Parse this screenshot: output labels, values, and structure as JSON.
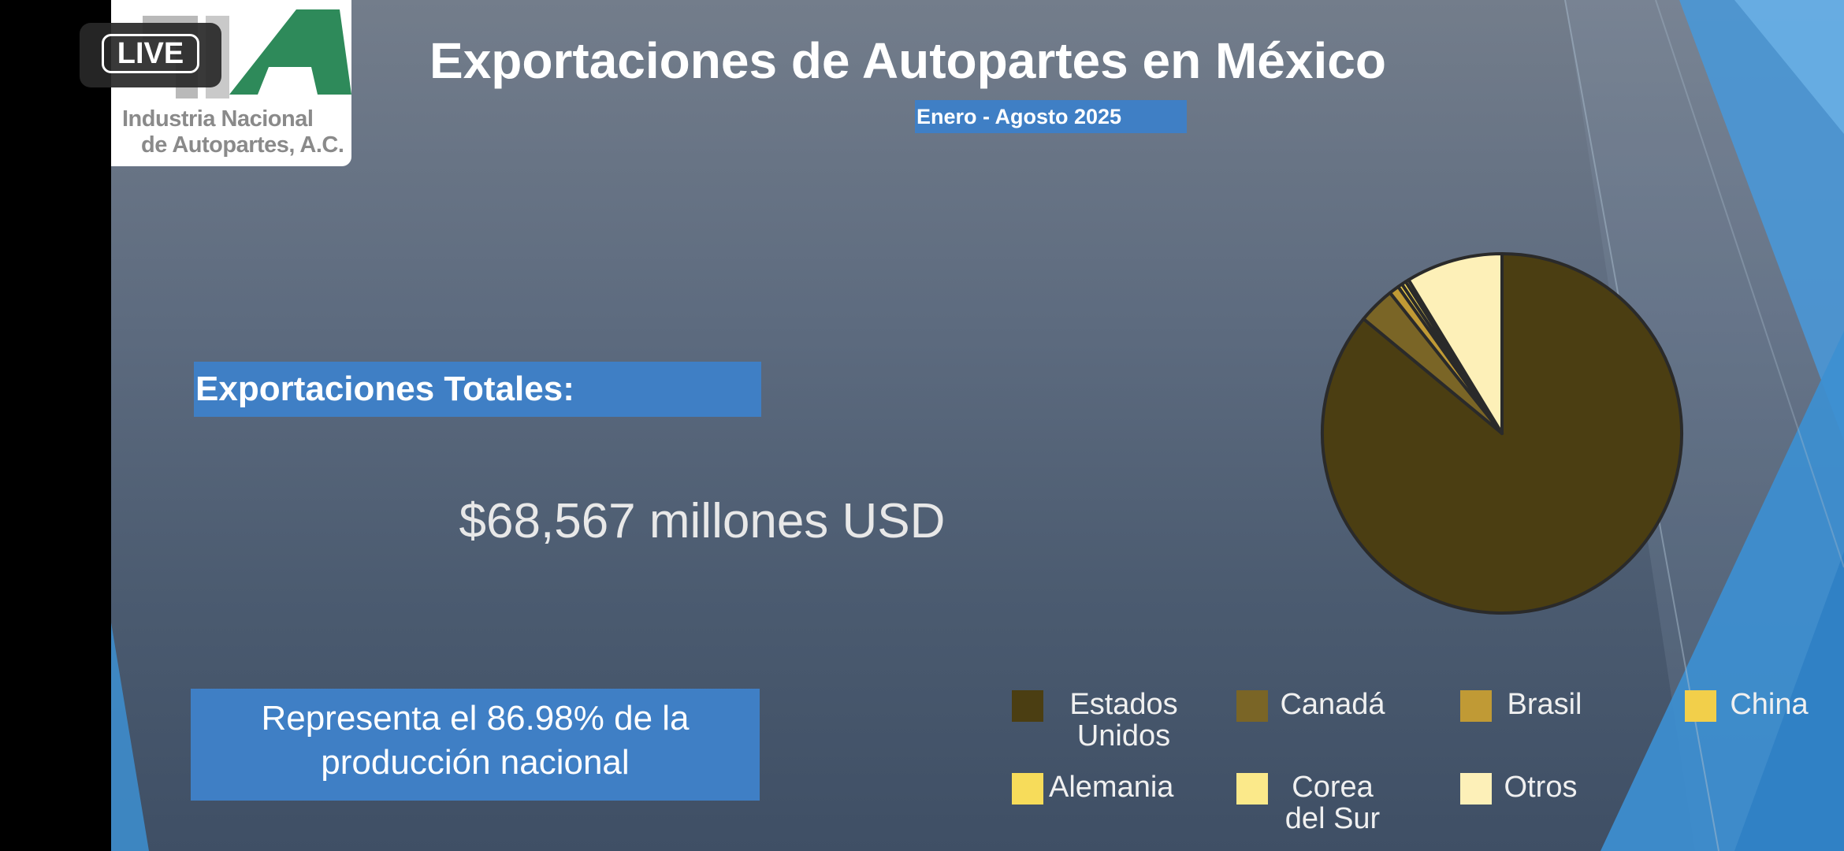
{
  "overlay": {
    "live_label": "LIVE"
  },
  "logo": {
    "line1": "Industria Nacional",
    "line2": "de Autopartes, A.C.",
    "colors": {
      "green": "#2e8a5a",
      "dark": "#3a3a3a"
    }
  },
  "slide": {
    "title": "Exportaciones de Autopartes en México",
    "subtitle": "Enero - Agosto 2025",
    "totals_label": "Exportaciones Totales:",
    "totals_value": "$68,567 millones USD",
    "note": "Representa el 86.98% de la producción nacional"
  },
  "chart_data": {
    "type": "pie",
    "title": "",
    "legend_position": "bottom",
    "slices": [
      {
        "label": "Estados Unidos",
        "value": 86.0,
        "color": "#4b3e12"
      },
      {
        "label": "Canadá",
        "value": 3.3,
        "color": "#7a6526"
      },
      {
        "label": "Brasil",
        "value": 0.9,
        "color": "#c09a35"
      },
      {
        "label": "China",
        "value": 0.4,
        "color": "#f2cf4a"
      },
      {
        "label": "Alemania",
        "value": 0.4,
        "color": "#f7dc5a"
      },
      {
        "label": "Corea del Sur",
        "value": 0.3,
        "color": "#fbe98a"
      },
      {
        "label": "Otros",
        "value": 8.7,
        "color": "#fdf0b8"
      }
    ]
  }
}
